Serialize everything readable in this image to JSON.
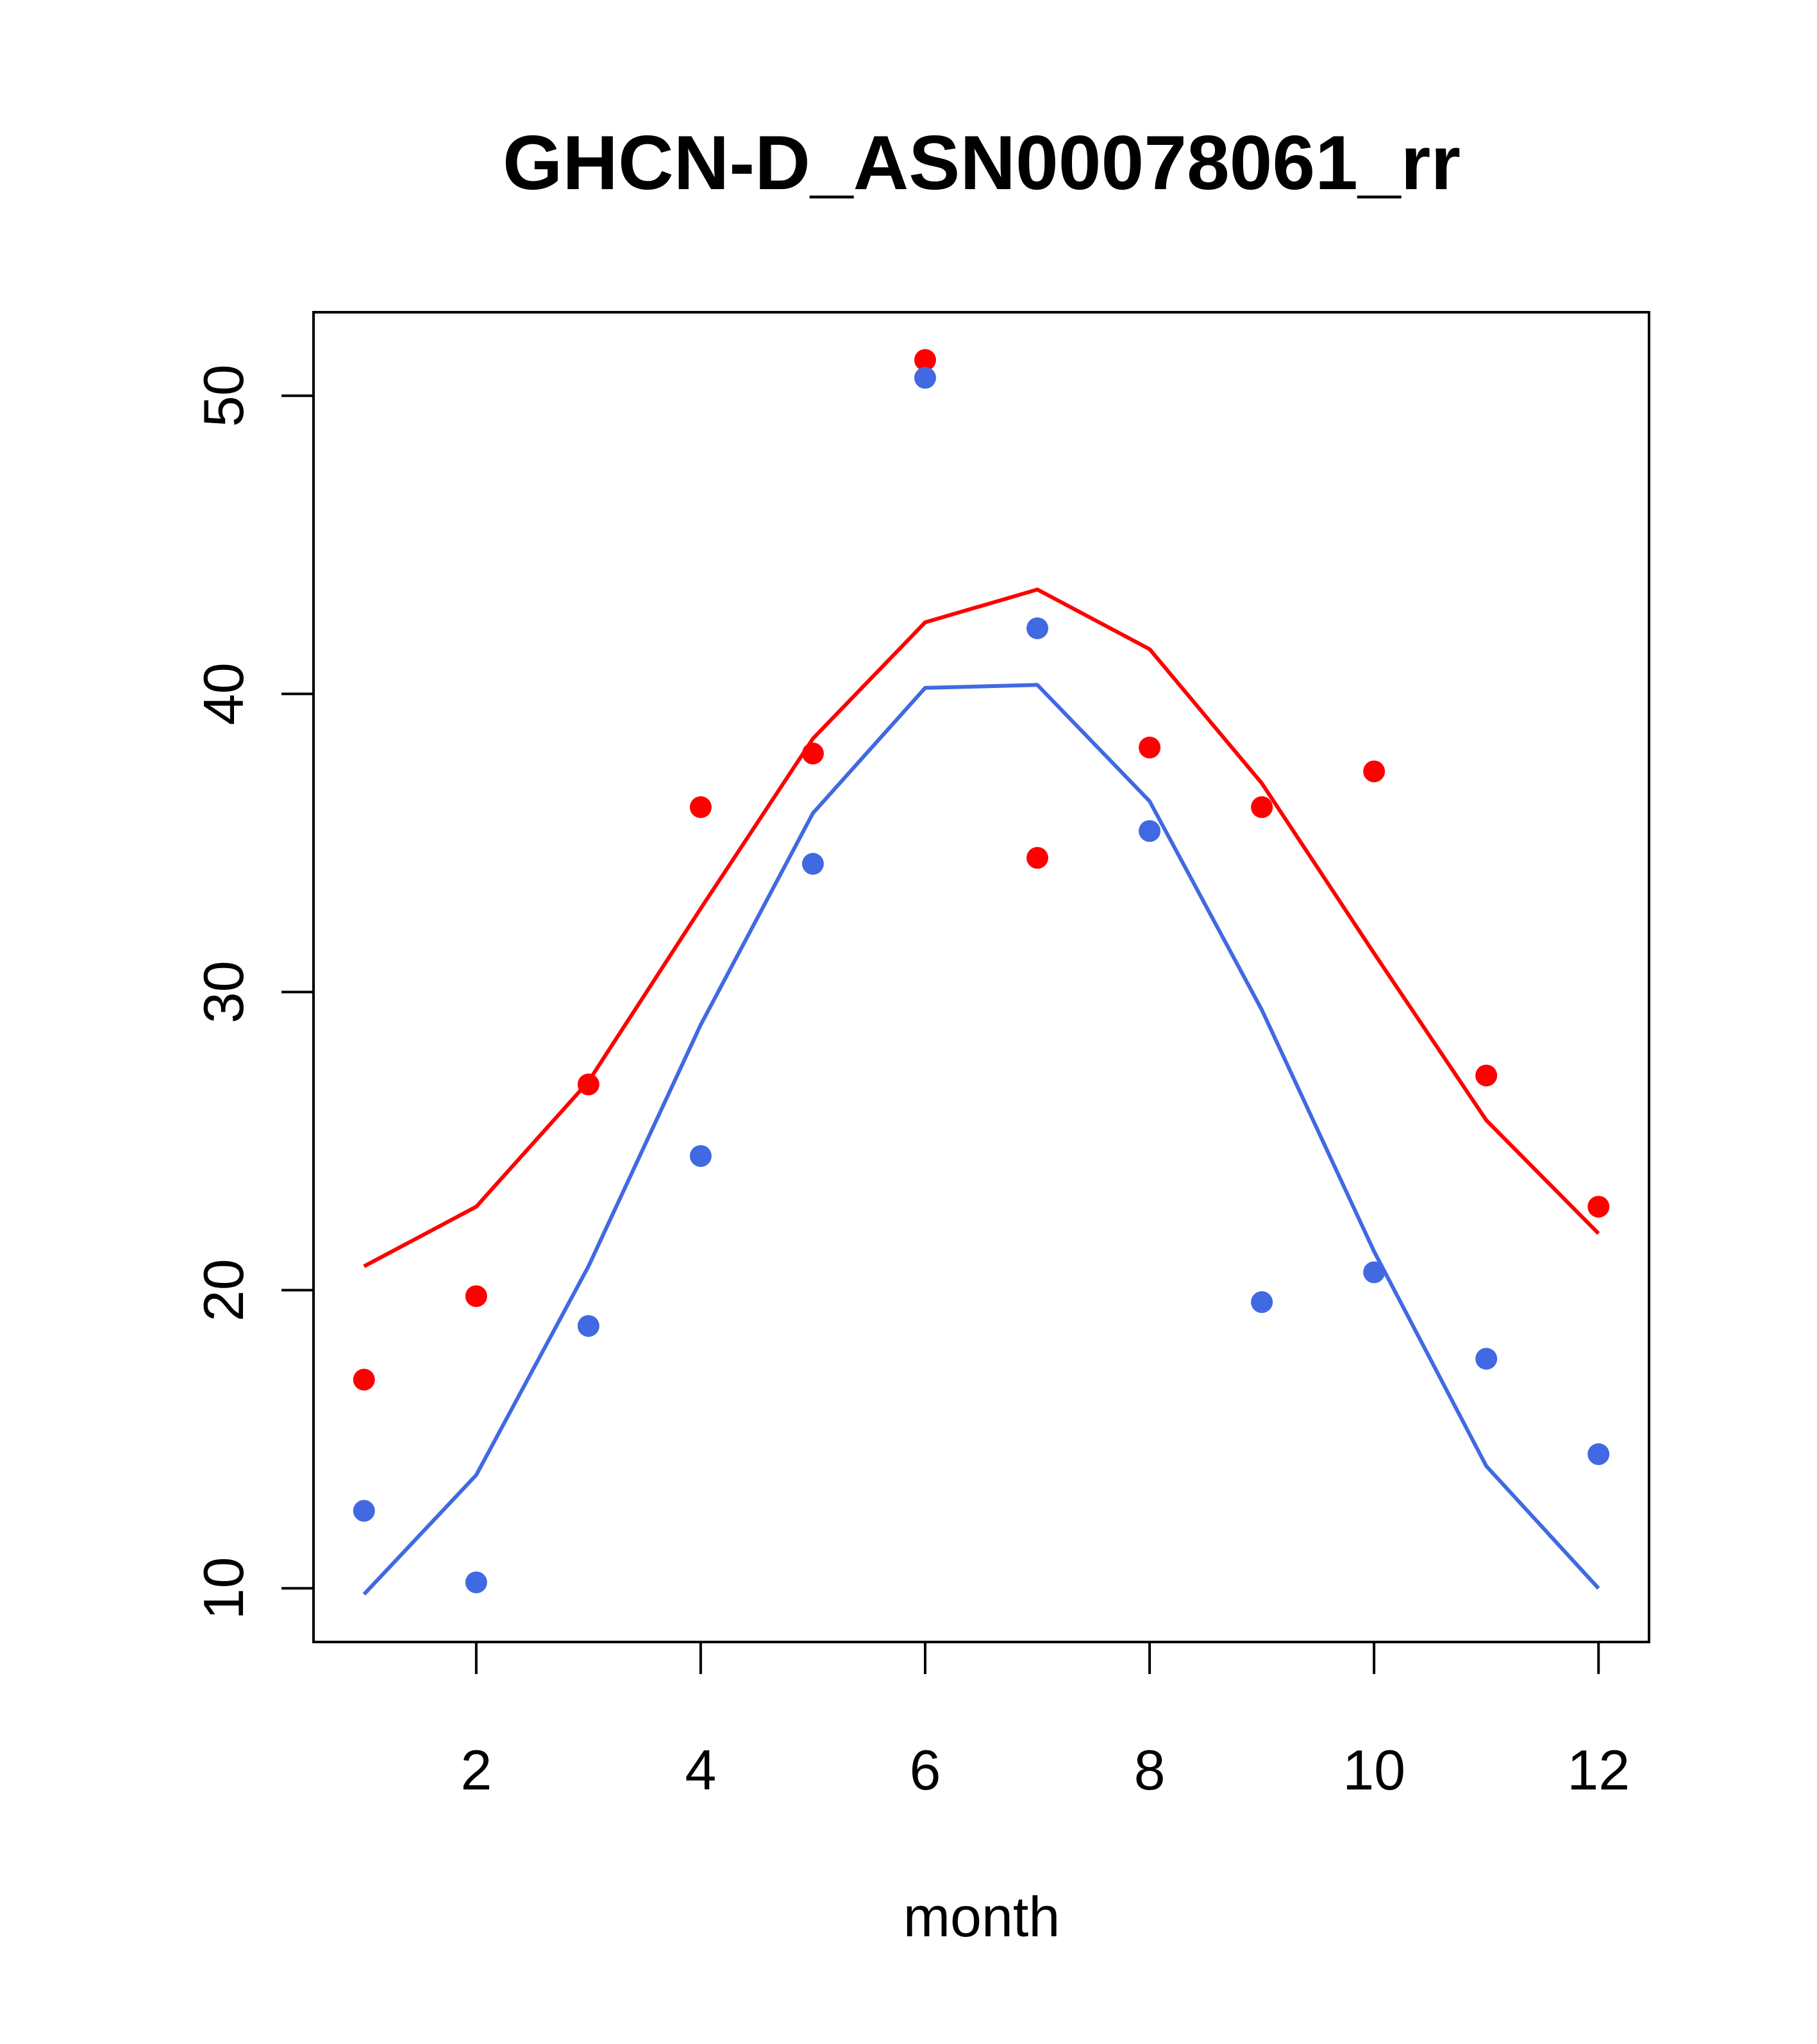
{
  "chart_data": {
    "type": "scatter",
    "title": "GHCN-D_ASN00078061_rr",
    "xlabel": "month",
    "ylabel": "",
    "xlim": [
      0.55,
      12.45
    ],
    "ylim": [
      8.2,
      52.8
    ],
    "x_ticks": [
      2,
      4,
      6,
      8,
      10,
      12
    ],
    "y_ticks": [
      10,
      20,
      30,
      40,
      50
    ],
    "x_tick_labels": [
      "2",
      "4",
      "6",
      "8",
      "10",
      "12"
    ],
    "y_tick_labels": [
      "10",
      "20",
      "30",
      "40",
      "50"
    ],
    "grid": false,
    "x": [
      1,
      2,
      3,
      4,
      5,
      6,
      7,
      8,
      9,
      10,
      11,
      12
    ],
    "series": [
      {
        "name": "red points",
        "kind": "points",
        "color": "#ff0000",
        "values": [
          17.0,
          19.8,
          26.9,
          36.2,
          38.0,
          51.2,
          34.5,
          38.2,
          36.2,
          37.4,
          27.2,
          22.8
        ]
      },
      {
        "name": "red line",
        "kind": "line",
        "color": "#ff0000",
        "values": [
          20.8,
          22.8,
          27.0,
          32.8,
          38.5,
          42.4,
          43.5,
          41.5,
          37.0,
          31.3,
          25.7,
          21.9
        ]
      },
      {
        "name": "blue points",
        "kind": "points",
        "color": "#4169e1",
        "values": [
          12.6,
          10.2,
          18.8,
          24.5,
          34.3,
          50.6,
          42.2,
          35.4,
          19.6,
          20.6,
          17.7,
          14.5
        ]
      },
      {
        "name": "blue line",
        "kind": "line",
        "color": "#4169e1",
        "values": [
          9.8,
          13.8,
          20.8,
          28.9,
          36.0,
          40.2,
          40.3,
          36.4,
          29.4,
          21.3,
          14.1,
          10.0
        ]
      }
    ]
  }
}
